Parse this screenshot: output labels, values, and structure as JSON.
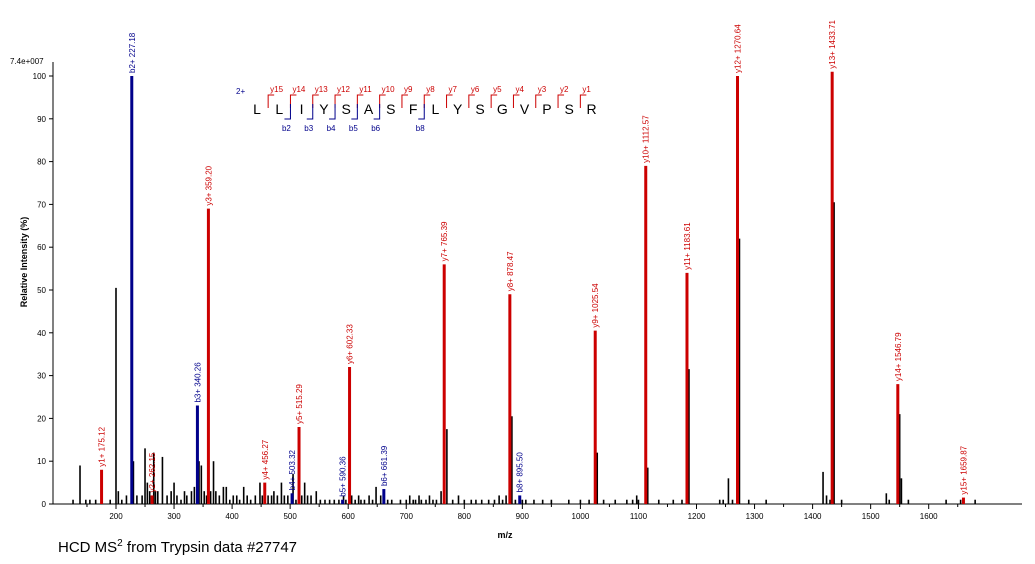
{
  "caption": {
    "prefix": "HCD MS",
    "superscript": "2",
    "suffix": " from Trypsin data #27747"
  },
  "chart_data": {
    "type": "bar",
    "title": "",
    "xlabel": "m/z",
    "ylabel": "Relative   Intensity (%)",
    "scale_label": "7.4e+007",
    "xlim": [
      100,
      1690
    ],
    "ylim": [
      0,
      102
    ],
    "x_ticks": [
      200,
      300,
      400,
      500,
      600,
      700,
      800,
      900,
      1000,
      1100,
      1200,
      1300,
      1400,
      1500,
      1600
    ],
    "y_ticks": [
      0,
      10,
      20,
      30,
      40,
      50,
      60,
      70,
      80,
      90,
      100
    ],
    "colors": {
      "y_ion": "#cc0000",
      "b_ion": "#00008b",
      "unassigned": "#000000"
    },
    "annotated_peaks": [
      {
        "mz": 175.12,
        "intensity": 8,
        "ion": "y",
        "label": "y1+ 175.12"
      },
      {
        "mz": 227.18,
        "intensity": 100,
        "ion": "b",
        "label": "b2+ 227.18"
      },
      {
        "mz": 262.15,
        "intensity": 2,
        "ion": "y",
        "label": "y2+ 262.15"
      },
      {
        "mz": 340.26,
        "intensity": 23,
        "ion": "b",
        "label": "b3+ 340.26"
      },
      {
        "mz": 359.2,
        "intensity": 69,
        "ion": "y",
        "label": "y3+ 359.20"
      },
      {
        "mz": 456.27,
        "intensity": 5,
        "ion": "y",
        "label": "y4+ 456.27"
      },
      {
        "mz": 503.32,
        "intensity": 2.5,
        "ion": "b",
        "label": "b4+ 503.32"
      },
      {
        "mz": 515.29,
        "intensity": 18,
        "ion": "y",
        "label": "y5+ 515.29"
      },
      {
        "mz": 590.36,
        "intensity": 1,
        "ion": "b",
        "label": "b5+ 590.36"
      },
      {
        "mz": 602.33,
        "intensity": 32,
        "ion": "y",
        "label": "y6+ 602.33"
      },
      {
        "mz": 661.39,
        "intensity": 3.5,
        "ion": "b",
        "label": "b6+ 661.39"
      },
      {
        "mz": 765.39,
        "intensity": 56,
        "ion": "y",
        "label": "y7+ 765.39"
      },
      {
        "mz": 878.47,
        "intensity": 49,
        "ion": "y",
        "label": "y8+ 878.47"
      },
      {
        "mz": 895.5,
        "intensity": 2,
        "ion": "b",
        "label": "b8+ 895.50"
      },
      {
        "mz": 1025.54,
        "intensity": 40.5,
        "ion": "y",
        "label": "y9+ 1025.54"
      },
      {
        "mz": 1112.57,
        "intensity": 79,
        "ion": "y",
        "label": "y10+ 1112.57"
      },
      {
        "mz": 1183.61,
        "intensity": 54,
        "ion": "y",
        "label": "y11+ 1183.61"
      },
      {
        "mz": 1270.64,
        "intensity": 100,
        "ion": "y",
        "label": "y12+ 1270.64"
      },
      {
        "mz": 1433.71,
        "intensity": 101,
        "ion": "y",
        "label": "y13+ 1433.71"
      },
      {
        "mz": 1546.79,
        "intensity": 28,
        "ion": "y",
        "label": "y14+ 1546.79"
      },
      {
        "mz": 1659.87,
        "intensity": 1.5,
        "ion": "y",
        "label": "y15+ 1659.87"
      }
    ],
    "unassigned_peaks": [
      [
        126,
        1
      ],
      [
        138,
        9
      ],
      [
        148,
        1
      ],
      [
        155,
        1
      ],
      [
        165,
        1
      ],
      [
        175,
        1
      ],
      [
        190,
        1
      ],
      [
        200,
        50.5
      ],
      [
        204,
        3
      ],
      [
        210,
        1
      ],
      [
        218,
        2
      ],
      [
        230,
        10
      ],
      [
        236,
        2
      ],
      [
        245,
        2
      ],
      [
        250,
        13
      ],
      [
        254,
        5
      ],
      [
        258,
        3
      ],
      [
        265,
        12
      ],
      [
        268,
        3
      ],
      [
        272,
        3
      ],
      [
        280,
        11
      ],
      [
        288,
        2
      ],
      [
        295,
        3
      ],
      [
        300,
        5
      ],
      [
        305,
        2
      ],
      [
        312,
        1
      ],
      [
        318,
        3
      ],
      [
        322,
        2
      ],
      [
        330,
        3
      ],
      [
        335,
        4
      ],
      [
        343,
        10
      ],
      [
        347,
        9
      ],
      [
        352,
        3
      ],
      [
        356,
        2
      ],
      [
        363,
        3
      ],
      [
        368,
        10
      ],
      [
        372,
        3
      ],
      [
        378,
        2
      ],
      [
        385,
        4
      ],
      [
        390,
        4
      ],
      [
        396,
        1
      ],
      [
        402,
        2
      ],
      [
        408,
        2
      ],
      [
        413,
        1
      ],
      [
        420,
        4
      ],
      [
        426,
        2
      ],
      [
        432,
        1
      ],
      [
        440,
        2
      ],
      [
        448,
        5
      ],
      [
        452,
        2
      ],
      [
        462,
        2
      ],
      [
        468,
        2
      ],
      [
        472,
        3
      ],
      [
        478,
        2
      ],
      [
        485,
        5
      ],
      [
        490,
        2
      ],
      [
        496,
        2
      ],
      [
        505,
        7
      ],
      [
        510,
        1
      ],
      [
        520,
        2
      ],
      [
        525,
        5
      ],
      [
        530,
        2
      ],
      [
        536,
        2
      ],
      [
        545,
        3
      ],
      [
        552,
        1
      ],
      [
        560,
        1
      ],
      [
        568,
        1
      ],
      [
        576,
        1
      ],
      [
        584,
        1
      ],
      [
        592,
        2
      ],
      [
        596,
        1
      ],
      [
        606,
        2
      ],
      [
        612,
        1
      ],
      [
        618,
        2
      ],
      [
        622,
        1
      ],
      [
        628,
        1
      ],
      [
        636,
        2
      ],
      [
        642,
        1
      ],
      [
        648,
        4
      ],
      [
        656,
        2
      ],
      [
        668,
        1
      ],
      [
        675,
        1
      ],
      [
        690,
        1
      ],
      [
        700,
        1
      ],
      [
        706,
        2
      ],
      [
        712,
        1
      ],
      [
        716,
        1
      ],
      [
        722,
        2
      ],
      [
        726,
        1
      ],
      [
        734,
        1
      ],
      [
        740,
        2
      ],
      [
        746,
        1
      ],
      [
        752,
        1
      ],
      [
        760,
        3
      ],
      [
        770,
        17.5
      ],
      [
        780,
        1
      ],
      [
        790,
        2
      ],
      [
        800,
        1
      ],
      [
        812,
        1
      ],
      [
        820,
        1
      ],
      [
        830,
        1
      ],
      [
        842,
        1
      ],
      [
        852,
        1
      ],
      [
        860,
        2
      ],
      [
        866,
        1
      ],
      [
        872,
        2
      ],
      [
        882,
        20.5
      ],
      [
        888,
        1
      ],
      [
        900,
        1
      ],
      [
        906,
        1
      ],
      [
        920,
        1
      ],
      [
        935,
        1
      ],
      [
        950,
        1
      ],
      [
        980,
        1
      ],
      [
        1000,
        1
      ],
      [
        1015,
        1
      ],
      [
        1029,
        12
      ],
      [
        1040,
        1
      ],
      [
        1060,
        1
      ],
      [
        1080,
        1
      ],
      [
        1090,
        1
      ],
      [
        1097,
        2
      ],
      [
        1100,
        1
      ],
      [
        1116,
        8.5
      ],
      [
        1135,
        1
      ],
      [
        1160,
        1
      ],
      [
        1175,
        1
      ],
      [
        1187,
        31.5
      ],
      [
        1240,
        1
      ],
      [
        1246,
        1
      ],
      [
        1255,
        6
      ],
      [
        1262,
        1
      ],
      [
        1274,
        62
      ],
      [
        1290,
        1
      ],
      [
        1320,
        1
      ],
      [
        1418,
        7.5
      ],
      [
        1424,
        2
      ],
      [
        1430,
        1
      ],
      [
        1437,
        70.5
      ],
      [
        1450,
        1
      ],
      [
        1527,
        2.5
      ],
      [
        1532,
        1
      ],
      [
        1550,
        21
      ],
      [
        1553,
        6
      ],
      [
        1565,
        1
      ],
      [
        1630,
        1
      ],
      [
        1655,
        1
      ],
      [
        1680,
        1
      ]
    ],
    "peptide": {
      "charge": "2+",
      "sequence": [
        "L",
        "L",
        "I",
        "Y",
        "S",
        "A",
        "S",
        "F",
        "L",
        "Y",
        "S",
        "G",
        "V",
        "P",
        "S",
        "R"
      ],
      "y_ions": [
        {
          "label": "y15",
          "cut": 1
        },
        {
          "label": "y14",
          "cut": 2
        },
        {
          "label": "y13",
          "cut": 3
        },
        {
          "label": "y12",
          "cut": 4
        },
        {
          "label": "y11",
          "cut": 5
        },
        {
          "label": "y10",
          "cut": 6
        },
        {
          "label": "y9",
          "cut": 7
        },
        {
          "label": "y8",
          "cut": 8
        },
        {
          "label": "y7",
          "cut": 9
        },
        {
          "label": "y6",
          "cut": 10
        },
        {
          "label": "y5",
          "cut": 11
        },
        {
          "label": "y4",
          "cut": 12
        },
        {
          "label": "y3",
          "cut": 13
        },
        {
          "label": "y2",
          "cut": 14
        },
        {
          "label": "y1",
          "cut": 15
        }
      ],
      "b_ions": [
        {
          "label": "b2",
          "cut": 2
        },
        {
          "label": "b3",
          "cut": 3
        },
        {
          "label": "b4",
          "cut": 4
        },
        {
          "label": "b5",
          "cut": 5
        },
        {
          "label": "b6",
          "cut": 6
        },
        {
          "label": "b8",
          "cut": 8
        }
      ]
    }
  }
}
